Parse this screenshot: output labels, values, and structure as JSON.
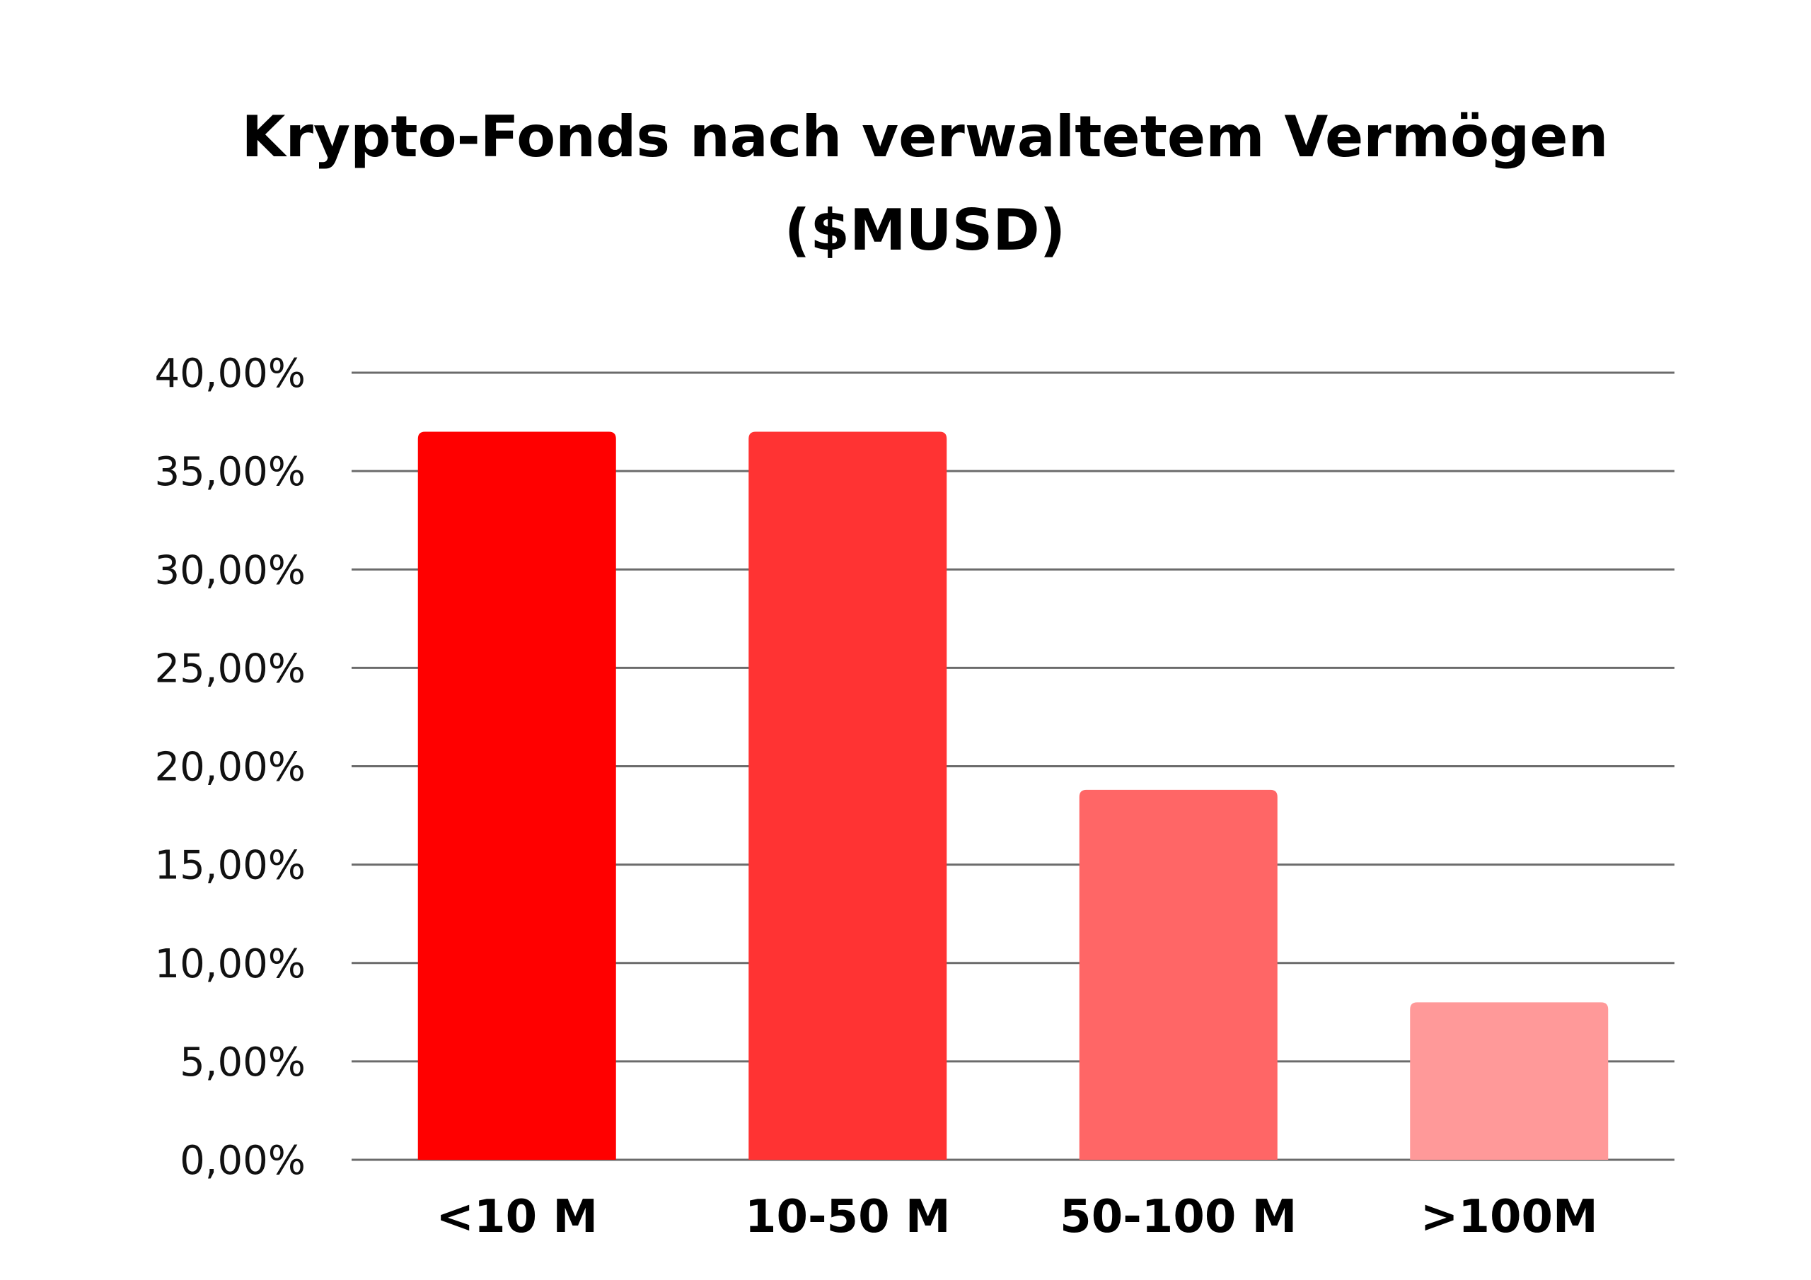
{
  "chart_data": {
    "type": "bar",
    "title_line1": "Krypto-Fonds nach verwaltetem Vermögen",
    "title_line2": "($MUSD)",
    "xlabel": "",
    "ylabel": "",
    "categories": [
      "<10 M",
      "10-50 M",
      "50-100 M",
      ">100M"
    ],
    "values": [
      37.0,
      37.0,
      18.8,
      8.0
    ],
    "colors": [
      "#ff0000",
      "#ff3333",
      "#ff6666",
      "#ff9999"
    ],
    "ylim": [
      0,
      40
    ],
    "yticks": [
      0,
      5,
      10,
      15,
      20,
      25,
      30,
      35,
      40
    ],
    "ytick_labels": [
      "0,00%",
      "5,00%",
      "10,00%",
      "15,00%",
      "20,00%",
      "25,00%",
      "30,00%",
      "35,00%",
      "40,00%"
    ],
    "grid": true,
    "gridline_color": "#6b6b6b"
  }
}
